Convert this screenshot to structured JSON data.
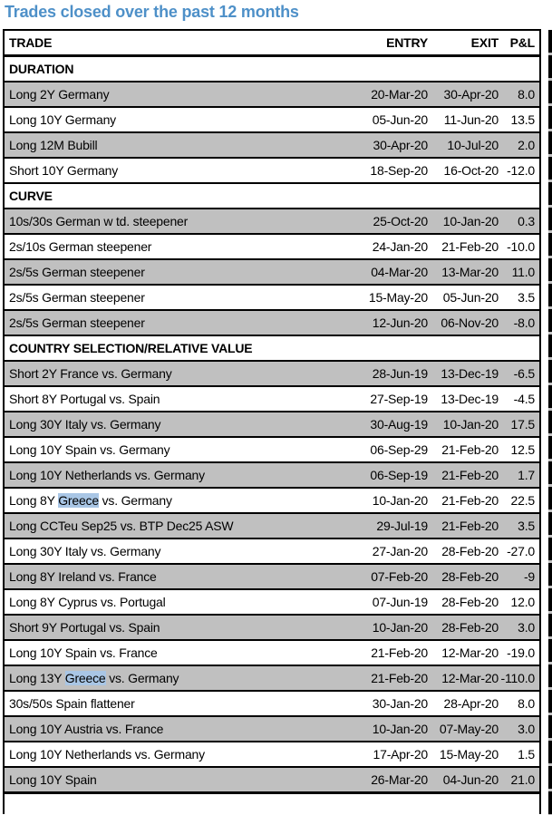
{
  "title": "Trades closed over the past 12 months",
  "colors": {
    "title_blue": "#4E90C8",
    "row_stripe_gray": "#C0C0C0",
    "highlight_blue": "#A9C6E5",
    "border_black": "#000000"
  },
  "table": {
    "columns": [
      "TRADE",
      "ENTRY",
      "EXIT",
      "P&L"
    ],
    "sections": [
      {
        "label": "DURATION",
        "rows": [
          {
            "trade": "Long 2Y Germany",
            "entry": "20-Mar-20",
            "exit": "30-Apr-20",
            "pnl": "8.0"
          },
          {
            "trade": "Long 10Y Germany",
            "entry": "05-Jun-20",
            "exit": "11-Jun-20",
            "pnl": "13.5"
          },
          {
            "trade": "Long 12M Bubill",
            "entry": "30-Apr-20",
            "exit": "10-Jul-20",
            "pnl": "2.0"
          },
          {
            "trade": "Short 10Y Germany",
            "entry": "18-Sep-20",
            "exit": "16-Oct-20",
            "pnl": "-12.0"
          }
        ]
      },
      {
        "label": "CURVE",
        "rows": [
          {
            "trade": "10s/30s German w td. steepener",
            "entry": "25-Oct-20",
            "exit": "10-Jan-20",
            "pnl": "0.3"
          },
          {
            "trade": "2s/10s German steepener",
            "entry": "24-Jan-20",
            "exit": "21-Feb-20",
            "pnl": "-10.0"
          },
          {
            "trade": "2s/5s German steepener",
            "entry": "04-Mar-20",
            "exit": "13-Mar-20",
            "pnl": "11.0"
          },
          {
            "trade": "2s/5s German steepener",
            "entry": "15-May-20",
            "exit": "05-Jun-20",
            "pnl": "3.5"
          },
          {
            "trade": "2s/5s German steepener",
            "entry": "12-Jun-20",
            "exit": "06-Nov-20",
            "pnl": "-8.0"
          }
        ]
      },
      {
        "label": "COUNTRY SELECTION/RELATIVE VALUE",
        "rows": [
          {
            "trade": "Short 2Y France vs. Germany",
            "entry": "28-Jun-19",
            "exit": "13-Dec-19",
            "pnl": "-6.5"
          },
          {
            "trade": "Short 8Y Portugal vs. Spain",
            "entry": "27-Sep-19",
            "exit": "13-Dec-19",
            "pnl": "-4.5"
          },
          {
            "trade": "Long 30Y Italy vs. Germany",
            "entry": "30-Aug-19",
            "exit": "10-Jan-20",
            "pnl": "17.5"
          },
          {
            "trade": "Long 10Y Spain vs. Germany",
            "entry": "06-Sep-29",
            "exit": "21-Feb-20",
            "pnl": "12.5"
          },
          {
            "trade": "Long 10Y Netherlands vs. Germany",
            "entry": "06-Sep-19",
            "exit": "21-Feb-20",
            "pnl": "1.7"
          },
          {
            "trade": "Long 8Y Greece vs. Germany",
            "entry": "10-Jan-20",
            "exit": "21-Feb-20",
            "pnl": "22.5",
            "highlight": "Greece"
          },
          {
            "trade": "Long CCTeu Sep25 vs. BTP Dec25 ASW",
            "entry": "29-Jul-19",
            "exit": "21-Feb-20",
            "pnl": "3.5"
          },
          {
            "trade": "Long 30Y Italy vs. Germany",
            "entry": "27-Jan-20",
            "exit": "28-Feb-20",
            "pnl": "-27.0"
          },
          {
            "trade": "Long 8Y Ireland vs. France",
            "entry": "07-Feb-20",
            "exit": "28-Feb-20",
            "pnl": "-9"
          },
          {
            "trade": "Long 8Y Cyprus vs. Portugal",
            "entry": "07-Jun-19",
            "exit": "28-Feb-20",
            "pnl": "12.0"
          },
          {
            "trade": "Short 9Y Portugal vs. Spain",
            "entry": "10-Jan-20",
            "exit": "28-Feb-20",
            "pnl": "3.0"
          },
          {
            "trade": "Long 10Y Spain vs. France",
            "entry": "21-Feb-20",
            "exit": "12-Mar-20",
            "pnl": "-19.0"
          },
          {
            "trade": "Long 13Y Greece vs. Germany",
            "entry": "21-Feb-20",
            "exit": "12-Mar-20",
            "pnl": "-110.0",
            "highlight": "Greece"
          },
          {
            "trade": "30s/50s Spain flattener",
            "entry": "30-Jan-20",
            "exit": "28-Apr-20",
            "pnl": "8.0"
          },
          {
            "trade": "Long 10Y Austria vs. France",
            "entry": "10-Jan-20",
            "exit": "07-May-20",
            "pnl": "3.0"
          },
          {
            "trade": "Long 10Y Netherlands vs. Germany",
            "entry": "17-Apr-20",
            "exit": "15-May-20",
            "pnl": "1.5"
          },
          {
            "trade": "Long 10Y Spain",
            "entry": "26-Mar-20",
            "exit": "04-Jun-20",
            "pnl": "21.0"
          }
        ]
      }
    ]
  }
}
